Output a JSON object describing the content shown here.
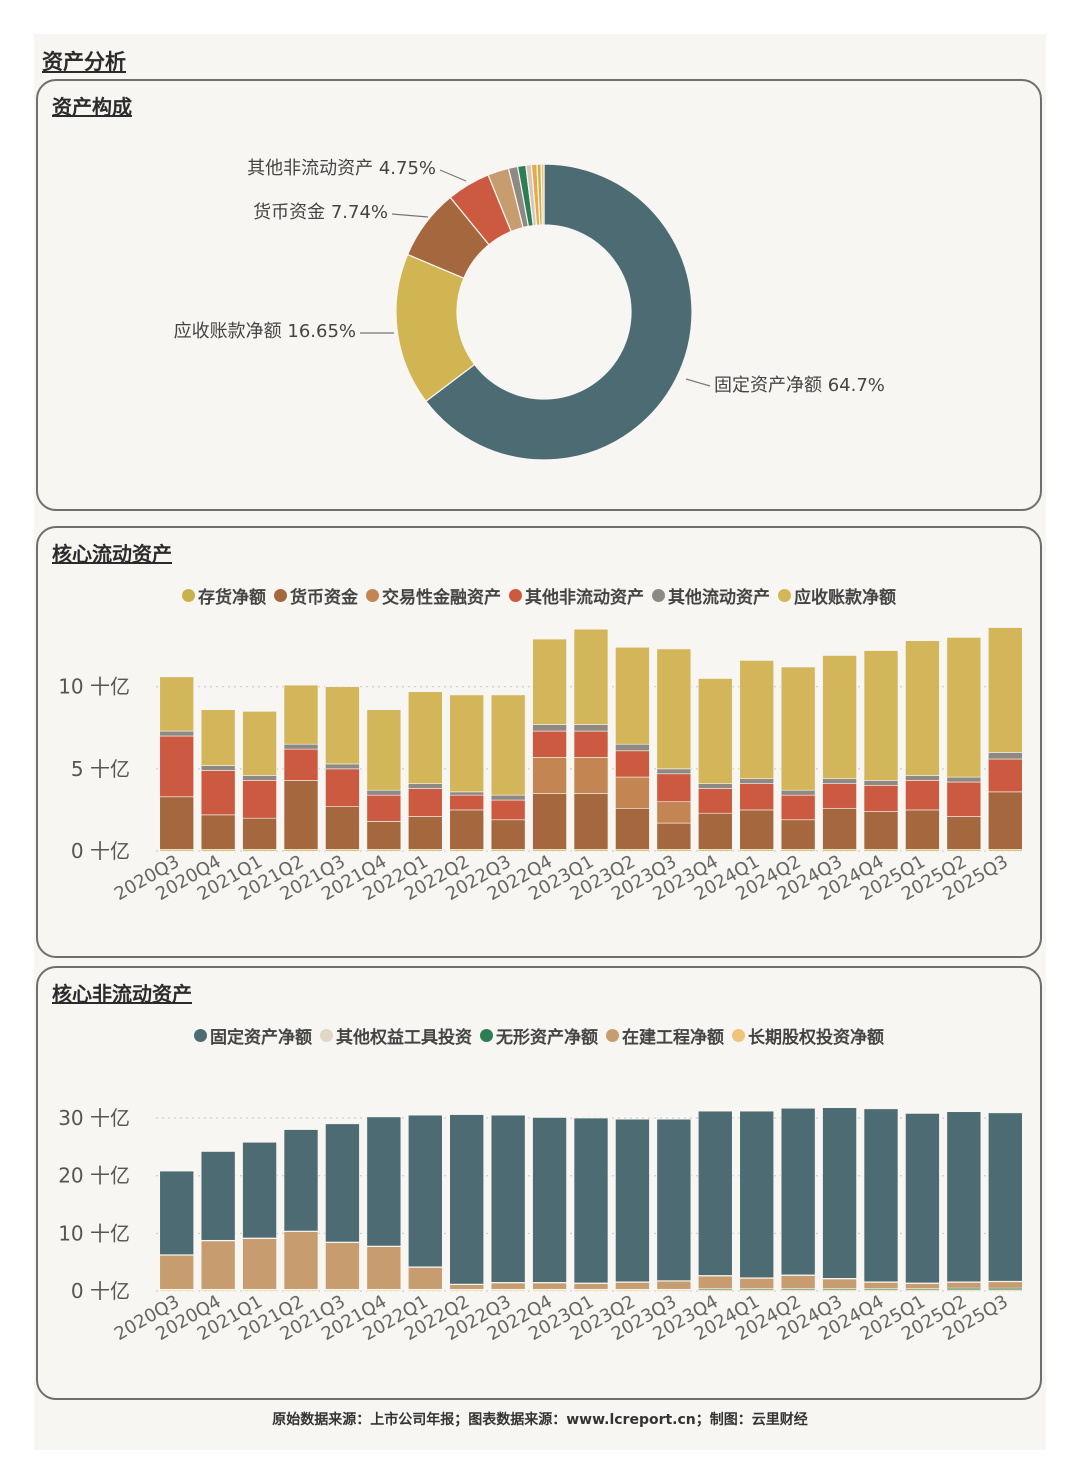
{
  "page_title": "资产分析",
  "footer": "原始数据来源：上市公司年报；图表数据来源：www.lcreport.cn；制图：云里财经",
  "unit": "十亿",
  "chart_data": [
    {
      "type": "pie",
      "title": "资产构成",
      "donut": true,
      "slices": [
        {
          "name": "固定资产净额",
          "value": 64.7,
          "label": "固定资产净额 64.7%",
          "color": "#4d6b73"
        },
        {
          "name": "应收账款净额",
          "value": 16.65,
          "label": "应收账款净额 16.65%",
          "color": "#d0b552"
        },
        {
          "name": "货币资金",
          "value": 7.74,
          "label": "货币资金 7.74%",
          "color": "#a5673e"
        },
        {
          "name": "其他非流动资产",
          "value": 4.75,
          "label": "其他非流动资产 4.75%",
          "color": "#cb5a41"
        },
        {
          "name": "在建工程净额",
          "value": 2.3,
          "label": "",
          "color": "#c79d6f"
        },
        {
          "name": "其他流动资产",
          "value": 1.0,
          "label": "",
          "color": "#8e8a83"
        },
        {
          "name": "无形资产净额",
          "value": 0.9,
          "label": "",
          "color": "#2f7d54"
        },
        {
          "name": "交易性金融资产",
          "value": 0.6,
          "label": "",
          "color": "#d4c8ba"
        },
        {
          "name": "长期股权投资净额",
          "value": 0.6,
          "label": "",
          "color": "#e8a845"
        },
        {
          "name": "存货净额",
          "value": 0.45,
          "label": "",
          "color": "#c9b24d"
        },
        {
          "name": "其他权益工具投资",
          "value": 0.31,
          "label": "",
          "color": "#f0c27a"
        }
      ]
    },
    {
      "type": "bar",
      "stacked": true,
      "title": "核心流动资产",
      "categories": [
        "2020Q3",
        "2020Q4",
        "2021Q1",
        "2021Q2",
        "2021Q3",
        "2021Q4",
        "2022Q1",
        "2022Q2",
        "2022Q3",
        "2022Q4",
        "2023Q1",
        "2023Q2",
        "2023Q3",
        "2023Q4",
        "2024Q1",
        "2024Q2",
        "2024Q3",
        "2024Q4",
        "2025Q1",
        "2025Q2",
        "2025Q3"
      ],
      "ylim": [
        0,
        14
      ],
      "yticks": [
        0,
        5,
        10
      ],
      "series": [
        {
          "name": "存货净额",
          "color": "#c9b24d",
          "values": [
            0.1,
            0.1,
            0.1,
            0.1,
            0.1,
            0.1,
            0.1,
            0.1,
            0.1,
            0.1,
            0.1,
            0.1,
            0.1,
            0.1,
            0.1,
            0.1,
            0.1,
            0.1,
            0.1,
            0.1,
            0.1
          ]
        },
        {
          "name": "货币资金",
          "color": "#a5673e",
          "values": [
            3.2,
            2.1,
            1.9,
            4.2,
            2.6,
            1.7,
            2.0,
            2.4,
            1.8,
            3.4,
            3.4,
            2.5,
            1.6,
            2.2,
            2.4,
            1.8,
            2.5,
            2.3,
            2.4,
            2.0,
            3.5
          ]
        },
        {
          "name": "交易性金融资产",
          "color": "#c38552",
          "values": [
            0,
            0,
            0,
            0,
            0,
            0,
            0,
            0,
            0,
            2.2,
            2.2,
            1.9,
            1.3,
            0,
            0,
            0,
            0,
            0,
            0,
            0,
            0
          ]
        },
        {
          "name": "其他非流动资产",
          "color": "#cb5a41",
          "values": [
            3.7,
            2.7,
            2.3,
            1.9,
            2.3,
            1.6,
            1.7,
            0.9,
            1.2,
            1.6,
            1.6,
            1.6,
            1.7,
            1.5,
            1.6,
            1.5,
            1.5,
            1.6,
            1.8,
            2.1,
            2.0
          ]
        },
        {
          "name": "其他流动资产",
          "color": "#8e8a83",
          "values": [
            0.3,
            0.3,
            0.3,
            0.3,
            0.3,
            0.3,
            0.3,
            0.2,
            0.3,
            0.4,
            0.4,
            0.4,
            0.3,
            0.3,
            0.3,
            0.3,
            0.3,
            0.3,
            0.3,
            0.3,
            0.4
          ]
        },
        {
          "name": "应收账款净额",
          "color": "#d4b65a",
          "values": [
            3.3,
            3.4,
            3.9,
            3.6,
            4.7,
            4.9,
            5.6,
            5.9,
            6.1,
            5.2,
            5.8,
            5.9,
            7.3,
            6.4,
            7.2,
            7.5,
            7.5,
            7.9,
            8.2,
            8.5,
            7.6
          ]
        }
      ]
    },
    {
      "type": "bar",
      "stacked": true,
      "title": "核心非流动资产",
      "categories": [
        "2020Q3",
        "2020Q4",
        "2021Q1",
        "2021Q2",
        "2021Q3",
        "2021Q4",
        "2022Q1",
        "2022Q2",
        "2022Q3",
        "2022Q4",
        "2023Q1",
        "2023Q2",
        "2023Q3",
        "2023Q4",
        "2024Q1",
        "2024Q2",
        "2024Q3",
        "2024Q4",
        "2025Q1",
        "2025Q2",
        "2025Q3"
      ],
      "ylim": [
        0,
        34
      ],
      "yticks": [
        0,
        10,
        20,
        30
      ],
      "series": [
        {
          "name": "长期股权投资净额",
          "color": "#f0c27a",
          "values": [
            0.2,
            0.2,
            0.2,
            0.2,
            0.2,
            0.2,
            0.2,
            0.2,
            0.2,
            0.2,
            0.2,
            0.2,
            0.2,
            0.2,
            0.2,
            0.2,
            0.2,
            0.2,
            0.2,
            0.2,
            0.2
          ]
        },
        {
          "name": "无形资产净额",
          "color": "#2f7d54",
          "values": [
            0.1,
            0.1,
            0.1,
            0.1,
            0.1,
            0.1,
            0.1,
            0.1,
            0.1,
            0.1,
            0.1,
            0.1,
            0.1,
            0.2,
            0.2,
            0.2,
            0.2,
            0.2,
            0.2,
            0.3,
            0.3
          ]
        },
        {
          "name": "在建工程净额",
          "color": "#c79d6f",
          "values": [
            5.9,
            8.4,
            8.8,
            10.0,
            8.1,
            7.4,
            3.8,
            0.8,
            1.1,
            1.1,
            1.0,
            1.2,
            1.4,
            2.2,
            1.8,
            2.3,
            1.7,
            1.1,
            0.9,
            1.0,
            1.1
          ]
        },
        {
          "name": "其他权益工具投资",
          "color": "#e2d6c8",
          "values": [
            0.1,
            0.1,
            0.1,
            0.1,
            0.1,
            0.1,
            0.1,
            0.1,
            0.1,
            0.1,
            0.1,
            0.1,
            0.1,
            0.1,
            0.1,
            0.1,
            0.1,
            0.1,
            0.1,
            0.1,
            0.1
          ]
        },
        {
          "name": "固定资产净额",
          "color": "#4d6b73",
          "values": [
            14.5,
            15.4,
            16.6,
            17.6,
            20.5,
            22.4,
            26.3,
            29.4,
            29.0,
            28.6,
            28.6,
            28.2,
            28.0,
            28.5,
            28.9,
            28.9,
            29.6,
            30.0,
            29.4,
            29.5,
            29.2
          ]
        }
      ],
      "legend_order": [
        "固定资产净额",
        "其他权益工具投资",
        "无形资产净额",
        "在建工程净额",
        "长期股权投资净额"
      ]
    }
  ]
}
